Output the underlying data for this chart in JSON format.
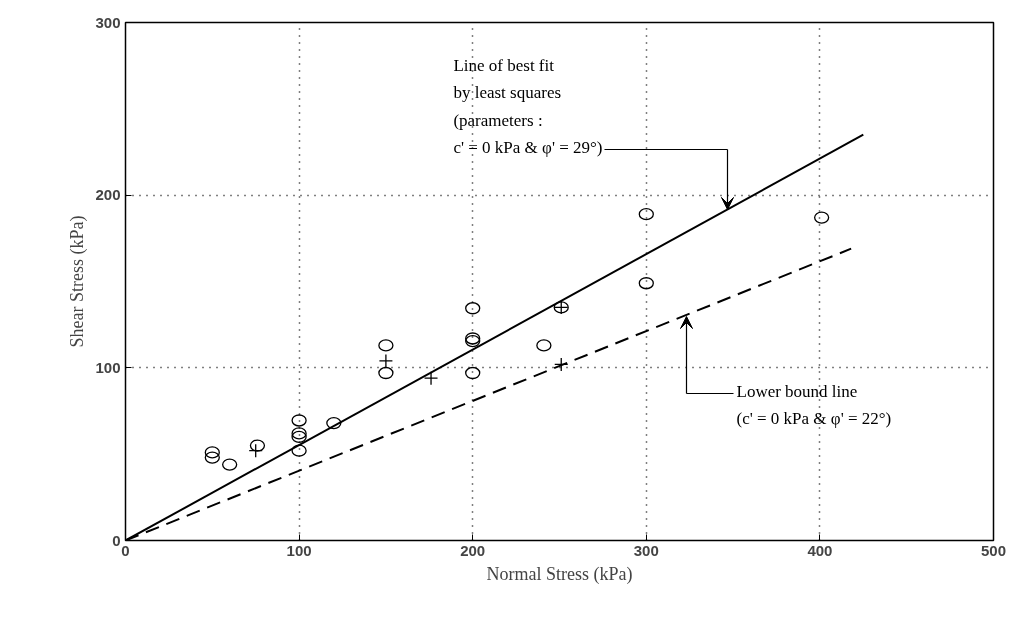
{
  "chart_data": {
    "type": "scatter",
    "xlabel": "Normal Stress (kPa)",
    "ylabel": "Shear Stress (kPa)",
    "xlim": [
      0,
      500
    ],
    "ylim": [
      0,
      300
    ],
    "xticks": [
      0,
      100,
      200,
      300,
      400,
      500
    ],
    "yticks": [
      0,
      100,
      200,
      300
    ],
    "grid": true,
    "series": [
      {
        "marker": "circle",
        "color": "#000000",
        "x": [
          50,
          50,
          60,
          76,
          100,
          100,
          100,
          100,
          120,
          150,
          150,
          200,
          200,
          200,
          200,
          241,
          251,
          300,
          300,
          401
        ],
        "values": [
          51,
          48,
          44,
          55,
          69.5,
          62,
          60,
          52,
          68,
          113,
          97,
          134.5,
          117,
          115.5,
          97,
          113,
          135,
          189,
          149,
          187
        ]
      },
      {
        "marker": "cross",
        "color": "#000000",
        "x": [
          75,
          150,
          176,
          251,
          251
        ],
        "values": [
          52,
          104,
          94,
          135,
          102
        ]
      },
      {
        "type": "line",
        "line_style": "solid",
        "color": "#000000",
        "x": [
          0,
          425
        ],
        "values": [
          0,
          235
        ]
      },
      {
        "type": "line",
        "line_style": "dashed",
        "color": "#000000",
        "x": [
          0,
          418
        ],
        "values": [
          0,
          169
        ]
      }
    ],
    "annotations": [
      "Line of best fit\nby least squares\n(parameters :\nc' = 0 kPa & φ' = 29°)",
      "Lower bound line\n(c' = 0 kPa  & φ' = 22°)"
    ]
  }
}
